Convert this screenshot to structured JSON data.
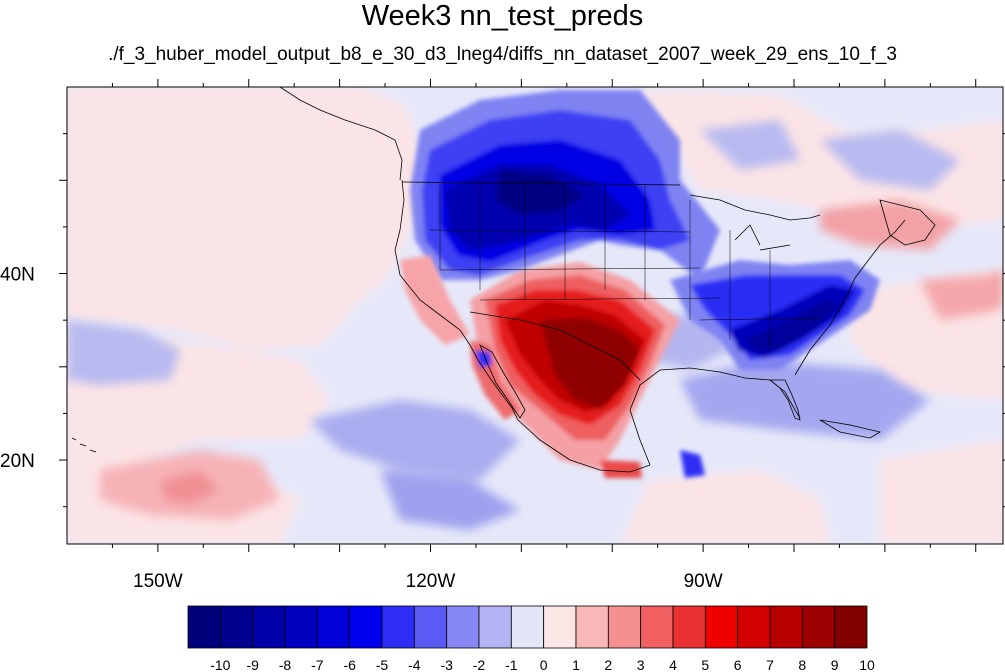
{
  "title": "Week3 nn_test_preds",
  "subtitle": "./f_3_huber_model_output_b8_e_30_d3_lneg4/diffs_nn_dataset_2007_week_29_ens_10_f_3",
  "map": {
    "lon_range": [
      -160,
      -57
    ],
    "lat_range": [
      11,
      60
    ],
    "lon_ticks": [
      {
        "label": "150W",
        "value": -150
      },
      {
        "label": "120W",
        "value": -120
      },
      {
        "label": "90W",
        "value": -90
      }
    ],
    "lat_ticks": [
      {
        "label": "40N",
        "value": 40
      },
      {
        "label": "20N",
        "value": 20
      }
    ]
  },
  "colorbar": {
    "labels": [
      "-10",
      "-9",
      "-8",
      "-7",
      "-6",
      "-5",
      "-4",
      "-3",
      "-2",
      "-1",
      "0",
      "1",
      "2",
      "3",
      "4",
      "5",
      "6",
      "7",
      "8",
      "9",
      "10"
    ],
    "colors": [
      "#00007a",
      "#00008f",
      "#0000a8",
      "#0000c0",
      "#0000d8",
      "#0000f0",
      "#2d2df5",
      "#5a5af5",
      "#8787f5",
      "#b4b4f5",
      "#e4e6f8",
      "#fbe5e5",
      "#f8b8b8",
      "#f59090",
      "#f06060",
      "#eb3232",
      "#f00000",
      "#d20000",
      "#b80000",
      "#9c0000",
      "#820000"
    ]
  },
  "chart_data": {
    "type": "heatmap",
    "title": "Week3 nn_test_preds",
    "subtitle": "./f_3_huber_model_output_b8_e_30_d3_lneg4/diffs_nn_dataset_2007_week_29_ens_10_f_3",
    "xlabel": "",
    "ylabel": "",
    "x_ticks": [
      "150W",
      "120W",
      "90W"
    ],
    "y_ticks": [
      "40N",
      "20N"
    ],
    "xlim": [
      -160,
      -57
    ],
    "ylim": [
      11,
      60
    ],
    "colorbar_levels": [
      -10,
      -9,
      -8,
      -7,
      -6,
      -5,
      -4,
      -3,
      -2,
      -1,
      0,
      1,
      2,
      3,
      4,
      5,
      6,
      7,
      8,
      9,
      10
    ],
    "anomaly_features": [
      {
        "name": "northwest_interior",
        "lon": -110,
        "lat": 48,
        "value": -8
      },
      {
        "name": "southwest_south_central",
        "lon": -102,
        "lat": 31,
        "value": 10
      },
      {
        "name": "southeast",
        "lon": -83,
        "lat": 33,
        "value": -8
      },
      {
        "name": "gulf_of_mexico",
        "lon": -90,
        "lat": 25,
        "value": -3
      },
      {
        "name": "northeast",
        "lon": -70,
        "lat": 44,
        "value": 4
      },
      {
        "name": "atlantic",
        "lon": -60,
        "lat": 36,
        "value": 3
      },
      {
        "name": "central_pacific",
        "lon": -148,
        "lat": 18,
        "value": 3
      },
      {
        "name": "eastern_pacific",
        "lon": -118,
        "lat": 16,
        "value": -5
      },
      {
        "name": "central_america_pacific",
        "lon": -105,
        "lat": 12,
        "value": -5
      }
    ]
  }
}
